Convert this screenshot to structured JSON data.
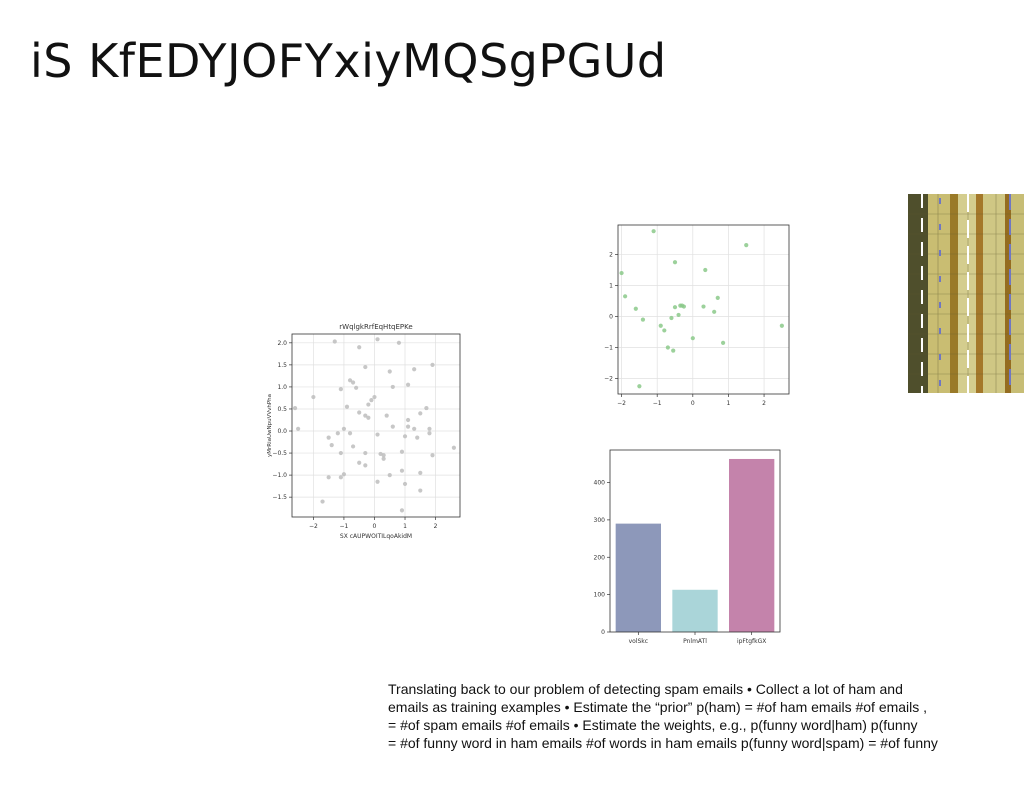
{
  "slide": {
    "title": "iS KfEDYJOFYxiyMQSgPGUd"
  },
  "body_text": {
    "lines": [
      "Translating back to our problem of detecting spam emails • Collect a lot of ham and",
      "emails as training examples • Estimate the “prior” p(ham) = #of ham emails #of emails ,",
      "= #of spam emails #of emails • Estimate the weights, e.g., p(funny word|ham) p(funny",
      "= #of funny word in ham emails #of words in ham emails p(funny word|spam) = #of funny"
    ]
  },
  "chart_data": [
    {
      "type": "scatter",
      "title": "rWqlgkRrfEqHtqEPKe",
      "xlabel": "SX cAUPWOITILqoAkidM",
      "ylabel": "yMrRiaUwNpuVVvhPha",
      "xlim": [
        -2.7,
        2.8
      ],
      "ylim": [
        -1.95,
        2.2
      ],
      "xticks": [
        -2,
        -1,
        0,
        1,
        2
      ],
      "xtick_labels": [
        "−2",
        "−1",
        "0",
        "1",
        "2"
      ],
      "yticks": [
        -1.5,
        -1.0,
        -0.5,
        0.0,
        0.5,
        1.0,
        1.5,
        2.0
      ],
      "ytick_labels": [
        "−1.5",
        "−1.0",
        "−0.5",
        "0.0",
        "0.5",
        "1.0",
        "1.5",
        "2.0"
      ],
      "grid": true,
      "color": "#bdbdbd",
      "points": [
        [
          -1.3,
          2.03
        ],
        [
          0.1,
          2.08
        ],
        [
          -0.5,
          1.9
        ],
        [
          0.8,
          2.0
        ],
        [
          -2.6,
          0.52
        ],
        [
          -2.5,
          0.05
        ],
        [
          -2.0,
          0.77
        ],
        [
          -1.1,
          0.95
        ],
        [
          -0.8,
          1.15
        ],
        [
          -0.7,
          1.1
        ],
        [
          -0.6,
          0.98
        ],
        [
          -0.3,
          1.45
        ],
        [
          0.5,
          1.35
        ],
        [
          0.6,
          1.0
        ],
        [
          1.3,
          1.4
        ],
        [
          1.9,
          1.5
        ],
        [
          -0.9,
          0.55
        ],
        [
          -0.5,
          0.42
        ],
        [
          -0.2,
          0.6
        ],
        [
          -0.1,
          0.7
        ],
        [
          0.0,
          0.77
        ],
        [
          0.4,
          0.35
        ],
        [
          1.1,
          1.05
        ],
        [
          1.5,
          0.4
        ],
        [
          1.7,
          0.52
        ],
        [
          -1.0,
          0.05
        ],
        [
          -0.8,
          -0.05
        ],
        [
          -0.3,
          0.35
        ],
        [
          -0.2,
          0.3
        ],
        [
          0.1,
          -0.08
        ],
        [
          0.6,
          0.1
        ],
        [
          1.1,
          0.25
        ],
        [
          1.1,
          0.1
        ],
        [
          1.3,
          0.05
        ],
        [
          1.8,
          -0.05
        ],
        [
          1.8,
          0.05
        ],
        [
          -1.5,
          -0.15
        ],
        [
          -1.4,
          -0.32
        ],
        [
          -1.2,
          -0.05
        ],
        [
          -1.1,
          -0.5
        ],
        [
          -0.7,
          -0.35
        ],
        [
          -0.3,
          -0.5
        ],
        [
          0.2,
          -0.52
        ],
        [
          0.3,
          -0.63
        ],
        [
          0.9,
          -0.47
        ],
        [
          1.0,
          -0.12
        ],
        [
          1.4,
          -0.15
        ],
        [
          1.9,
          -0.55
        ],
        [
          2.6,
          -0.38
        ],
        [
          -1.0,
          -0.98
        ],
        [
          -0.5,
          -0.72
        ],
        [
          -0.3,
          -0.78
        ],
        [
          0.3,
          -0.55
        ],
        [
          0.5,
          -1.0
        ],
        [
          0.9,
          -0.9
        ],
        [
          1.5,
          -0.95
        ],
        [
          -1.5,
          -1.05
        ],
        [
          -1.1,
          -1.05
        ],
        [
          0.1,
          -1.15
        ],
        [
          1.0,
          -1.2
        ],
        [
          1.5,
          -1.35
        ],
        [
          -1.7,
          -1.6
        ],
        [
          0.9,
          -1.8
        ]
      ]
    },
    {
      "type": "scatter",
      "title": "",
      "xlabel": "",
      "ylabel": "",
      "xlim": [
        -2.1,
        2.7
      ],
      "ylim": [
        -2.5,
        2.95
      ],
      "xticks": [
        -2,
        -1,
        0,
        1,
        2
      ],
      "xtick_labels": [
        "−2",
        "−1",
        "0",
        "1",
        "2"
      ],
      "yticks": [
        -2,
        -1,
        0,
        1,
        2
      ],
      "ytick_labels": [
        "−2",
        "−1",
        "0",
        "1",
        "2"
      ],
      "grid": true,
      "color": "#8bc98a",
      "points": [
        [
          -1.1,
          2.75
        ],
        [
          1.5,
          2.3
        ],
        [
          -2.0,
          1.4
        ],
        [
          -0.5,
          1.75
        ],
        [
          0.35,
          1.5
        ],
        [
          -1.9,
          0.65
        ],
        [
          -1.6,
          0.25
        ],
        [
          -1.4,
          -0.1
        ],
        [
          -0.9,
          -0.3
        ],
        [
          -0.8,
          -0.45
        ],
        [
          -0.6,
          -0.05
        ],
        [
          -0.5,
          0.3
        ],
        [
          -0.4,
          0.05
        ],
        [
          -0.35,
          0.35
        ],
        [
          -0.3,
          0.35
        ],
        [
          -0.25,
          0.32
        ],
        [
          0.3,
          0.32
        ],
        [
          0.6,
          0.15
        ],
        [
          0.7,
          0.6
        ],
        [
          2.5,
          -0.3
        ],
        [
          -0.7,
          -1.0
        ],
        [
          -0.55,
          -1.1
        ],
        [
          0.0,
          -0.7
        ],
        [
          0.85,
          -0.85
        ],
        [
          -1.5,
          -2.25
        ]
      ]
    },
    {
      "type": "bar",
      "title": "",
      "xlabel": "",
      "ylabel": "",
      "categories": [
        "volSkc",
        "PnlmATl",
        "ipFtgfkGX"
      ],
      "values": [
        290,
        113,
        463
      ],
      "colors": [
        "#8d98ba",
        "#aad5d9",
        "#c483ab"
      ],
      "ylim": [
        0,
        487
      ],
      "yticks": [
        0,
        100,
        200,
        300,
        400
      ],
      "ytick_labels": [
        "0",
        "100",
        "200",
        "300",
        "400"
      ],
      "grid": false
    }
  ],
  "photo": {
    "colors": [
      "#6b6a3a",
      "#b7a74a",
      "#a47a24",
      "#d3cf91",
      "#7b80b8"
    ]
  }
}
